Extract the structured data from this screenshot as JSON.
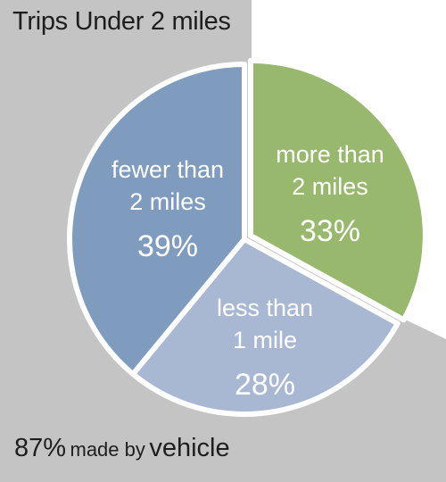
{
  "title": "Trips Under 2 miles",
  "footer": {
    "percent": "87%",
    "middle": "made by",
    "end": "vehicle"
  },
  "colors": {
    "background_gray": "#c4c4c4",
    "fewer": "#7f9bbd",
    "more": "#98b86e",
    "less": "#a8b8d2",
    "text_dark": "#1e1e1e",
    "label_text": "#ffffff"
  },
  "chart_data": {
    "type": "pie",
    "title": "Trips Under 2 miles",
    "slices": [
      {
        "label_lines": [
          "more than",
          "2 miles"
        ],
        "value": 33,
        "value_label": "33%",
        "color": "#98b86e",
        "exploded": true
      },
      {
        "label_lines": [
          "less than",
          "1 mile"
        ],
        "value": 28,
        "value_label": "28%",
        "color": "#a8b8d2",
        "exploded": false
      },
      {
        "label_lines": [
          "fewer than",
          "2 miles"
        ],
        "value": 39,
        "value_label": "39%",
        "color": "#7f9bbd",
        "exploded": false
      }
    ],
    "annotation": "87% made by vehicle"
  }
}
